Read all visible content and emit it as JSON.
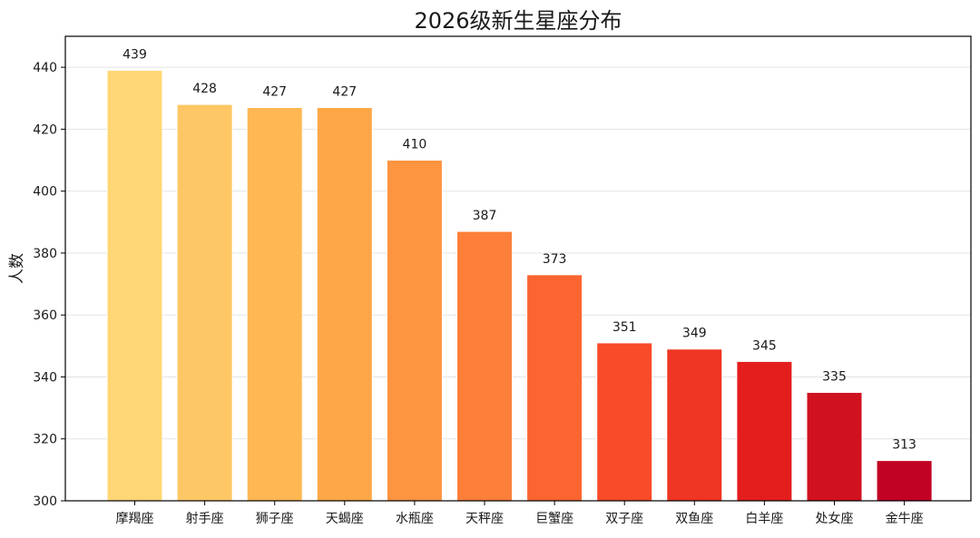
{
  "chart_data": {
    "type": "bar",
    "title": "2026级新生星座分布",
    "xlabel": "",
    "ylabel": "人数",
    "ylim": [
      300,
      450
    ],
    "yticks": [
      300,
      320,
      340,
      360,
      380,
      400,
      420,
      440
    ],
    "grid": true,
    "categories": [
      "摩羯座",
      "射手座",
      "狮子座",
      "天蝎座",
      "水瓶座",
      "天秤座",
      "巨蟹座",
      "双子座",
      "双鱼座",
      "白羊座",
      "处女座",
      "金牛座"
    ],
    "values": [
      439,
      428,
      427,
      427,
      410,
      387,
      373,
      351,
      349,
      345,
      335,
      313
    ],
    "colors": [
      "#fed676",
      "#fec765",
      "#feb753",
      "#fea747",
      "#fd9440",
      "#fd7f39",
      "#fc6531",
      "#f94a2a",
      "#ef3523",
      "#e31e1d",
      "#d0111f",
      "#c10225"
    ]
  }
}
